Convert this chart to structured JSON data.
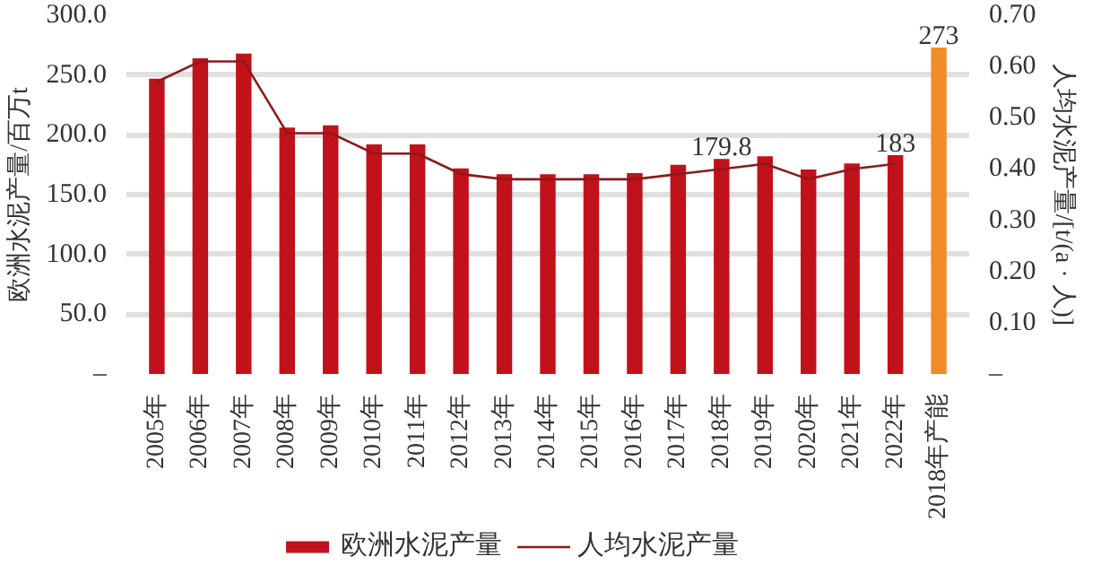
{
  "chart_data": {
    "type": "bar",
    "categories": [
      "2005年",
      "2006年",
      "2007年",
      "2008年",
      "2009年",
      "2010年",
      "2011年",
      "2012年",
      "2013年",
      "2014年",
      "2015年",
      "2016年",
      "2017年",
      "2018年",
      "2019年",
      "2020年",
      "2021年",
      "2022年",
      "2018年产能"
    ],
    "series": [
      {
        "name": "欧洲水泥产量",
        "colors": [
          "#c1121c",
          "#c1121c",
          "#c1121c",
          "#c1121c",
          "#c1121c",
          "#c1121c",
          "#c1121c",
          "#c1121c",
          "#c1121c",
          "#c1121c",
          "#c1121c",
          "#c1121c",
          "#c1121c",
          "#c1121c",
          "#c1121c",
          "#c1121c",
          "#c1121c",
          "#c1121c",
          "#f28c28"
        ],
        "values": [
          247,
          264,
          268,
          206,
          208,
          192,
          192,
          172,
          167,
          167,
          167,
          168,
          175,
          179.8,
          182,
          171,
          176,
          183,
          273
        ],
        "value_labels": [
          null,
          null,
          null,
          null,
          null,
          null,
          null,
          null,
          null,
          null,
          null,
          null,
          null,
          "179.8",
          null,
          null,
          null,
          "183",
          "273"
        ]
      },
      {
        "name": "人均水泥产量",
        "type": "line",
        "axis": "y2",
        "color": "#8b1a1a",
        "values": [
          0.57,
          0.61,
          0.61,
          0.47,
          0.47,
          0.43,
          0.43,
          0.39,
          0.38,
          0.38,
          0.38,
          0.38,
          0.39,
          0.4,
          0.41,
          0.38,
          0.4,
          0.41,
          null
        ]
      }
    ],
    "ylabel": "欧洲水泥产量/百万t",
    "y2label": "人均水泥产量/[t/(a · 人)]",
    "ylim": [
      0,
      300
    ],
    "yticks": [
      {
        "value": 0,
        "label": "–"
      },
      {
        "value": 50,
        "label": "50.0"
      },
      {
        "value": 100,
        "label": "100.0"
      },
      {
        "value": 150,
        "label": "150.0"
      },
      {
        "value": 200,
        "label": "200.0"
      },
      {
        "value": 250,
        "label": "250.0"
      },
      {
        "value": 300,
        "label": "300.0"
      }
    ],
    "y2lim": [
      0,
      0.7
    ],
    "y2ticks": [
      {
        "value": 0,
        "label": "–"
      },
      {
        "value": 0.1,
        "label": "0.10"
      },
      {
        "value": 0.2,
        "label": "0.20"
      },
      {
        "value": 0.3,
        "label": "0.30"
      },
      {
        "value": 0.4,
        "label": "0.40"
      },
      {
        "value": 0.5,
        "label": "0.50"
      },
      {
        "value": 0.6,
        "label": "0.60"
      },
      {
        "value": 0.7,
        "label": "0.70"
      }
    ],
    "grid": "y",
    "legend": "bottom"
  }
}
